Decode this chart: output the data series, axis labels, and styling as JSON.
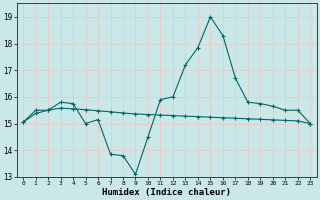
{
  "xlabel": "Humidex (Indice chaleur)",
  "bg_color": "#cae8e8",
  "grid_color": "#e8c8c8",
  "line_color": "#006666",
  "xlim": [
    -0.5,
    23.5
  ],
  "ylim": [
    13,
    19.5
  ],
  "yticks": [
    13,
    14,
    15,
    16,
    17,
    18,
    19
  ],
  "xticks": [
    0,
    1,
    2,
    3,
    4,
    5,
    6,
    7,
    8,
    9,
    10,
    11,
    12,
    13,
    14,
    15,
    16,
    17,
    18,
    19,
    20,
    21,
    22,
    23
  ],
  "series1_x": [
    0,
    1,
    2,
    3,
    4,
    5,
    6,
    7,
    8,
    9,
    10,
    11,
    12,
    13,
    14,
    15,
    16,
    17,
    18,
    19,
    20,
    21,
    22,
    23
  ],
  "series1_y": [
    15.05,
    15.5,
    15.5,
    15.8,
    15.75,
    15.0,
    15.15,
    13.85,
    13.8,
    13.1,
    14.5,
    15.9,
    16.0,
    17.2,
    17.85,
    19.0,
    18.3,
    16.7,
    15.8,
    15.75,
    15.65,
    15.5,
    15.5,
    15.0
  ],
  "series2_x": [
    0,
    1,
    2,
    3,
    4,
    5,
    6,
    7,
    8,
    9,
    10,
    11,
    12,
    13,
    14,
    15,
    16,
    17,
    18,
    19,
    20,
    21,
    22,
    23
  ],
  "series2_y": [
    15.05,
    15.38,
    15.5,
    15.58,
    15.55,
    15.52,
    15.48,
    15.44,
    15.4,
    15.36,
    15.34,
    15.32,
    15.3,
    15.28,
    15.26,
    15.24,
    15.22,
    15.2,
    15.18,
    15.16,
    15.14,
    15.12,
    15.1,
    15.0
  ]
}
